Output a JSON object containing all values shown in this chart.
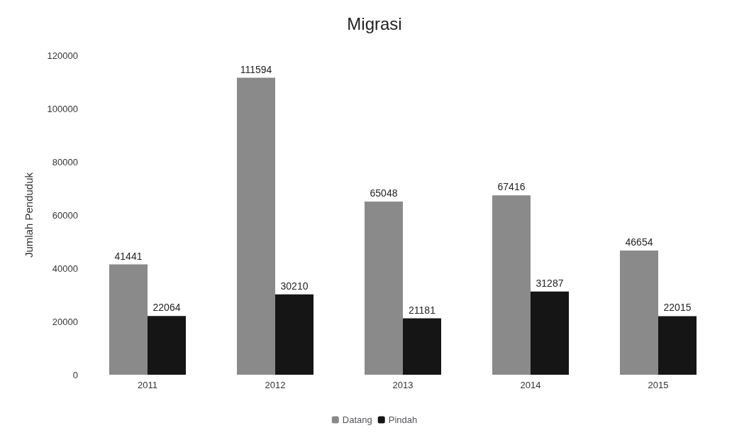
{
  "chart_data": {
    "type": "bar",
    "title": "Migrasi",
    "ylabel": "Jumlah Penduduk",
    "categories": [
      "2011",
      "2012",
      "2013",
      "2014",
      "2015"
    ],
    "series": [
      {
        "name": "Datang",
        "color": "#8a8a8a",
        "values": [
          41441,
          111594,
          65048,
          67416,
          46654
        ]
      },
      {
        "name": "Pindah",
        "color": "#151515",
        "values": [
          22064,
          30210,
          21181,
          31287,
          22015
        ]
      }
    ],
    "ylim": [
      0,
      120000
    ],
    "yticks": [
      0,
      20000,
      40000,
      60000,
      80000,
      100000,
      120000
    ],
    "data_labels": true,
    "grid": false,
    "legend": "bottom"
  }
}
